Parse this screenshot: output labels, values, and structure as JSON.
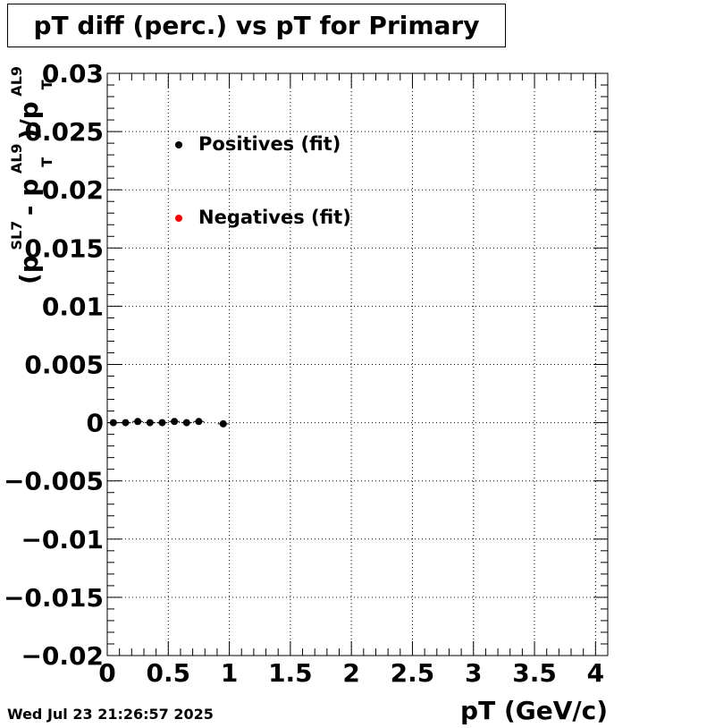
{
  "chart_data": {
    "type": "scatter",
    "title": "pT diff (perc.) vs pT for Primary",
    "xlabel": "pT (GeV/c)",
    "ylabel": {
      "prefix": "(p",
      "sup1": "SL7",
      "mid": " - p",
      "sup2": "AL9",
      "sub2": "T",
      "tail": ")/p",
      "sup3": "AL9",
      "sub3": "T"
    },
    "xlim": [
      0,
      4.1
    ],
    "ylim": [
      -0.02,
      0.03
    ],
    "xticks": [
      "0",
      "0.5",
      "1",
      "1.5",
      "2",
      "2.5",
      "3",
      "3.5",
      "4"
    ],
    "yticks": [
      "0.03",
      "0.025",
      "0.02",
      "0.015",
      "0.01",
      "0.005",
      "0",
      "−0.005",
      "−0.01",
      "−0.015",
      "−0.02"
    ],
    "grid": true,
    "legend_position": "top-left",
    "series": [
      {
        "name": "Positives (fit)",
        "color": "#000000",
        "x": [
          0.05,
          0.15,
          0.25,
          0.35,
          0.45,
          0.55,
          0.65,
          0.75,
          0.95
        ],
        "y": [
          0.0,
          0.0,
          0.0001,
          0.0,
          0.0,
          0.0001,
          0.0,
          0.0001,
          -0.0001
        ]
      },
      {
        "name": "Negatives (fit)",
        "color": "#ff0000",
        "x": [],
        "y": []
      }
    ]
  },
  "footer": {
    "timestamp": "Wed Jul 23 21:26:57 2025"
  }
}
